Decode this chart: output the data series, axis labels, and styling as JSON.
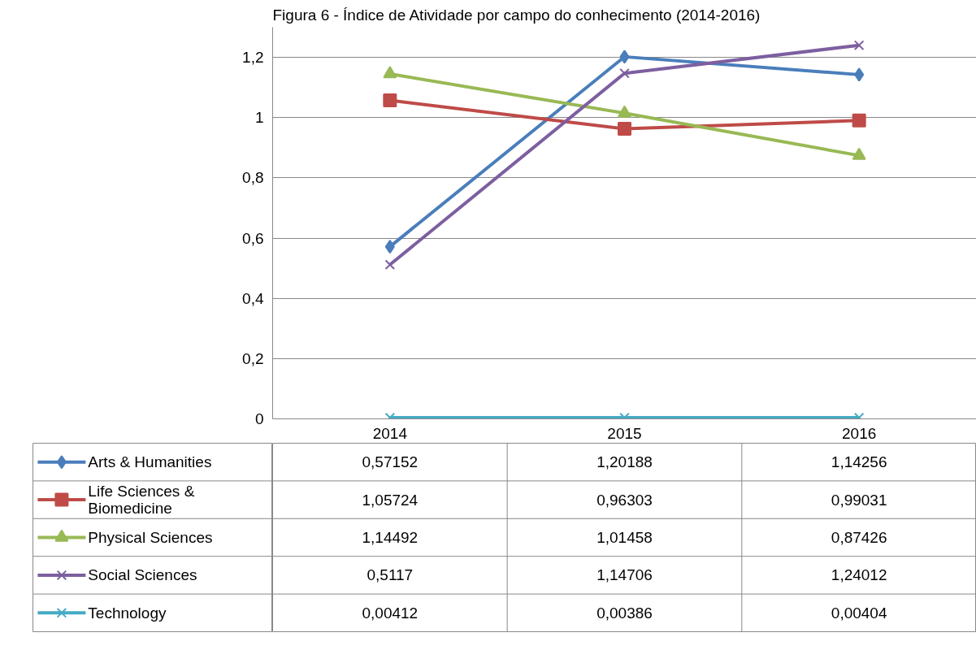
{
  "chart_data": {
    "type": "line",
    "title": "Figura 6 - Índice de Atividade por campo do conhecimento (2014-2016)",
    "categories": [
      "2014",
      "2015",
      "2016"
    ],
    "series": [
      {
        "name": "Arts & Humanities",
        "color": "#4a7ebb",
        "marker": "diamond",
        "values": [
          0.57152,
          1.20188,
          1.14256
        ],
        "value_labels": [
          "0,57152",
          "1,20188",
          "1,14256"
        ]
      },
      {
        "name": "Life Sciences & Biomedicine",
        "color": "#be4b48",
        "marker": "square",
        "values": [
          1.05724,
          0.96303,
          0.99031
        ],
        "value_labels": [
          "1,05724",
          "0,96303",
          "0,99031"
        ]
      },
      {
        "name": "Physical Sciences",
        "color": "#98b954",
        "marker": "triangle",
        "values": [
          1.14492,
          1.01458,
          0.87426
        ],
        "value_labels": [
          "1,14492",
          "1,01458",
          "0,87426"
        ]
      },
      {
        "name": "Social Sciences",
        "color": "#7d5fa0",
        "marker": "cross",
        "values": [
          0.5117,
          1.14706,
          1.24012
        ],
        "value_labels": [
          "0,5117",
          "1,14706",
          "1,24012"
        ]
      },
      {
        "name": "Technology",
        "color": "#46aac5",
        "marker": "cross",
        "values": [
          0.00412,
          0.00386,
          0.00404
        ],
        "value_labels": [
          "0,00412",
          "0,00386",
          "0,00404"
        ]
      }
    ],
    "ylim": [
      0,
      1.3
    ],
    "yticks": [
      0,
      {
        "value": 0.2,
        "label": "0,2"
      },
      {
        "value": 0.4,
        "label": "0,4"
      },
      {
        "value": 0.6,
        "label": "0,6"
      },
      {
        "value": 0.8,
        "label": "0,8"
      },
      1,
      {
        "value": 1.2,
        "label": "1,2"
      }
    ],
    "grid": "y",
    "legend": "bottom",
    "line_style": "solid"
  }
}
